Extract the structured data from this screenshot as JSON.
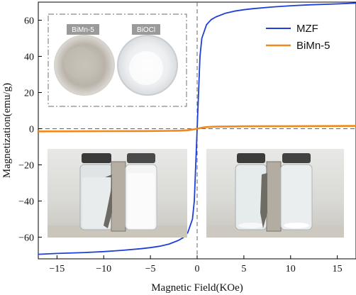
{
  "chart_data": {
    "type": "line",
    "title": "",
    "xlabel": "Magnetic Field(KOe)",
    "ylabel": "Magnetization(emu/g)",
    "xlim": [
      -17,
      17
    ],
    "ylim": [
      -72,
      70
    ],
    "xticks": [
      -15,
      -10,
      -5,
      0,
      5,
      10,
      15
    ],
    "yticks": [
      -60,
      -40,
      -20,
      0,
      20,
      40,
      60
    ],
    "grid": false,
    "legend_position": "top-right",
    "reference_lines": {
      "x": 0,
      "y": 0,
      "style": "dashed"
    },
    "series": [
      {
        "name": "MZF",
        "color": "#1f3fd6",
        "x": [
          -17,
          -15,
          -12,
          -10,
          -8,
          -6,
          -5,
          -4,
          -3,
          -2,
          -1.5,
          -1,
          -0.5,
          -0.3,
          0,
          0.3,
          0.5,
          1,
          1.5,
          2,
          3,
          4,
          5,
          6,
          8,
          10,
          12,
          15,
          17
        ],
        "y": [
          -69.5,
          -69,
          -68.5,
          -68,
          -67.3,
          -66.4,
          -65.8,
          -65,
          -63.8,
          -61.8,
          -60.3,
          -57.5,
          -50,
          -40,
          0,
          40,
          50,
          57.5,
          60.3,
          61.8,
          63.8,
          65,
          65.8,
          66.4,
          67.3,
          68,
          68.5,
          69,
          69.5
        ]
      },
      {
        "name": "BiMn-5",
        "color": "#f08a1c",
        "x": [
          -17,
          -10,
          -5,
          -3,
          -2,
          -1,
          -0.5,
          0,
          0.5,
          1,
          2,
          3,
          5,
          10,
          17
        ],
        "y": [
          -1.5,
          -1.4,
          -1.3,
          -1.2,
          -1.1,
          -0.9,
          -0.5,
          0,
          0.5,
          0.9,
          1.1,
          1.2,
          1.3,
          1.4,
          1.5
        ]
      }
    ]
  },
  "inset_powders": {
    "labels": [
      "BiMn-5",
      "BiOCl"
    ],
    "frame_style": "dash-dot"
  },
  "inset_photos": {
    "left": "vials with magnet, before separation",
    "right": "vials with magnet, after separation"
  }
}
